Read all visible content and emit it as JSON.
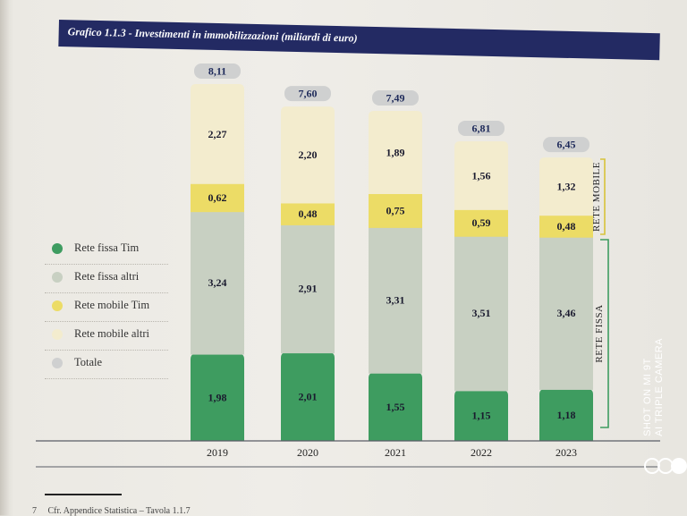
{
  "title": "Grafico 1.1.3 - Investimenti in immobilizzazioni (miliardi di euro)",
  "side_labels": {
    "mobile": "RETE MOBILE",
    "fissa": "RETE FISSA"
  },
  "legend": [
    {
      "label": "Rete fissa Tim",
      "color": "#3e9c60"
    },
    {
      "label": "Rete fissa altri",
      "color": "#c8d0c2"
    },
    {
      "label": "Rete mobile Tim",
      "color": "#ecdc66"
    },
    {
      "label": "Rete mobile altri",
      "color": "#f3ecce"
    },
    {
      "label": "Totale",
      "color": "#cfd0d0"
    }
  ],
  "footnote": {
    "number": "7",
    "text": "Cfr. Appendice Statistica – Tavola 1.1.7"
  },
  "watermark": {
    "line1": "SHOT ON MI 9T",
    "line2": "AI TRIPLE CAMERA"
  },
  "chart_data": {
    "type": "bar",
    "stacked": true,
    "title": "Grafico 1.1.3 - Investimenti in immobilizzazioni (miliardi di euro)",
    "categories": [
      "2019",
      "2020",
      "2021",
      "2022",
      "2023"
    ],
    "series": [
      {
        "name": "Rete fissa Tim",
        "values": [
          1.98,
          2.01,
          1.55,
          1.15,
          1.18
        ],
        "labels": [
          "1,98",
          "2,01",
          "1,55",
          "1,15",
          "1,18"
        ],
        "color": "#3e9c60"
      },
      {
        "name": "Rete fissa altri",
        "values": [
          3.24,
          2.91,
          3.31,
          3.51,
          3.46
        ],
        "labels": [
          "3,24",
          "2,91",
          "3,31",
          "3,51",
          "3,46"
        ],
        "color": "#c8d0c2"
      },
      {
        "name": "Rete mobile Tim",
        "values": [
          0.62,
          0.48,
          0.75,
          0.59,
          0.48
        ],
        "labels": [
          "0,62",
          "0,48",
          "0,75",
          "0,59",
          "0,48"
        ],
        "color": "#ecdc66"
      },
      {
        "name": "Rete mobile altri",
        "values": [
          2.27,
          2.2,
          1.89,
          1.56,
          1.32
        ],
        "labels": [
          "2,27",
          "2,20",
          "1,89",
          "1,56",
          "1,32"
        ],
        "color": "#f3ecce"
      }
    ],
    "totals": {
      "name": "Totale",
      "values": [
        8.11,
        7.6,
        7.49,
        6.81,
        6.45
      ],
      "labels": [
        "8,11",
        "7,60",
        "7,49",
        "6,81",
        "6,45"
      ],
      "color": "#cfd0d0"
    },
    "legend_position": "left"
  }
}
